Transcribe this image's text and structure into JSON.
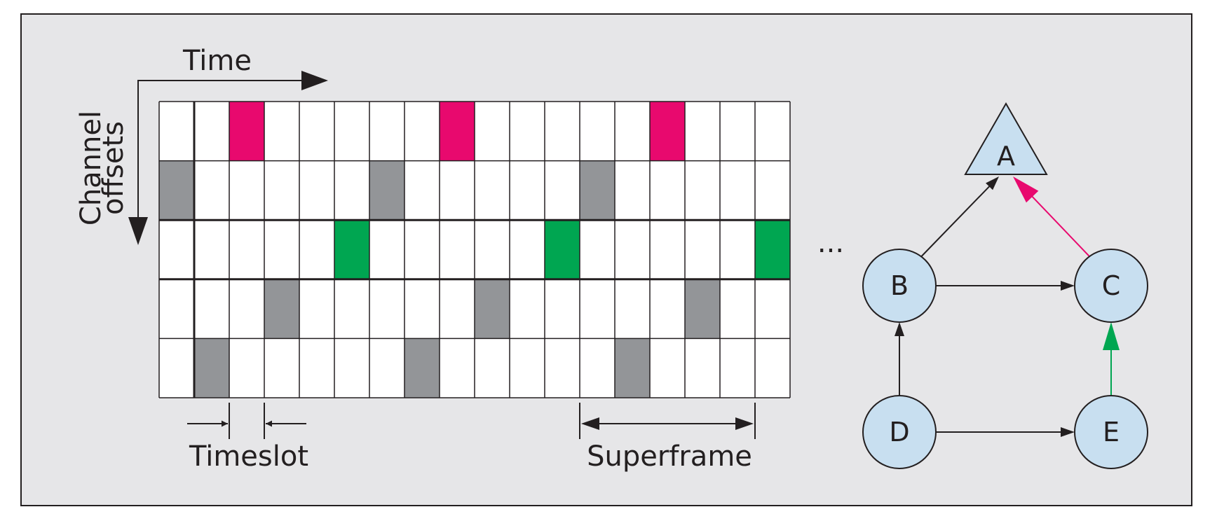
{
  "labels": {
    "time": "Time",
    "channel_line1": "Channel",
    "channel_line2": "offsets",
    "timeslot": "Timeslot",
    "superframe": "Superframe",
    "ellipsis": "..."
  },
  "colors": {
    "panel_bg": "#e6e6e8",
    "cell_white": "#ffffff",
    "pink": "#e8096e",
    "gray": "#939598",
    "green": "#00a651",
    "node_fill": "#c8dff0",
    "edge_black": "#231f20"
  },
  "schedule": {
    "slots": 18,
    "channels": 5,
    "cells": [
      {
        "slot": 2,
        "channel": 0,
        "color": "pink"
      },
      {
        "slot": 8,
        "channel": 0,
        "color": "pink"
      },
      {
        "slot": 14,
        "channel": 0,
        "color": "pink"
      },
      {
        "slot": 0,
        "channel": 1,
        "color": "gray"
      },
      {
        "slot": 6,
        "channel": 1,
        "color": "gray"
      },
      {
        "slot": 12,
        "channel": 1,
        "color": "gray"
      },
      {
        "slot": 5,
        "channel": 2,
        "color": "green"
      },
      {
        "slot": 11,
        "channel": 2,
        "color": "green"
      },
      {
        "slot": 17,
        "channel": 2,
        "color": "green"
      },
      {
        "slot": 3,
        "channel": 3,
        "color": "gray"
      },
      {
        "slot": 9,
        "channel": 3,
        "color": "gray"
      },
      {
        "slot": 15,
        "channel": 3,
        "color": "gray"
      },
      {
        "slot": 1,
        "channel": 4,
        "color": "gray"
      },
      {
        "slot": 7,
        "channel": 4,
        "color": "gray"
      },
      {
        "slot": 13,
        "channel": 4,
        "color": "gray"
      }
    ]
  },
  "graph": {
    "nodes": [
      {
        "id": "A",
        "label": "A",
        "shape": "triangle"
      },
      {
        "id": "B",
        "label": "B",
        "shape": "circle"
      },
      {
        "id": "C",
        "label": "C",
        "shape": "circle"
      },
      {
        "id": "D",
        "label": "D",
        "shape": "circle"
      },
      {
        "id": "E",
        "label": "E",
        "shape": "circle"
      }
    ],
    "edges": [
      {
        "from": "B",
        "to": "A",
        "color": "edge_black"
      },
      {
        "from": "C",
        "to": "A",
        "color": "pink"
      },
      {
        "from": "B",
        "to": "C",
        "color": "edge_black"
      },
      {
        "from": "D",
        "to": "B",
        "color": "edge_black"
      },
      {
        "from": "D",
        "to": "E",
        "color": "edge_black"
      },
      {
        "from": "E",
        "to": "C",
        "color": "green"
      }
    ]
  }
}
